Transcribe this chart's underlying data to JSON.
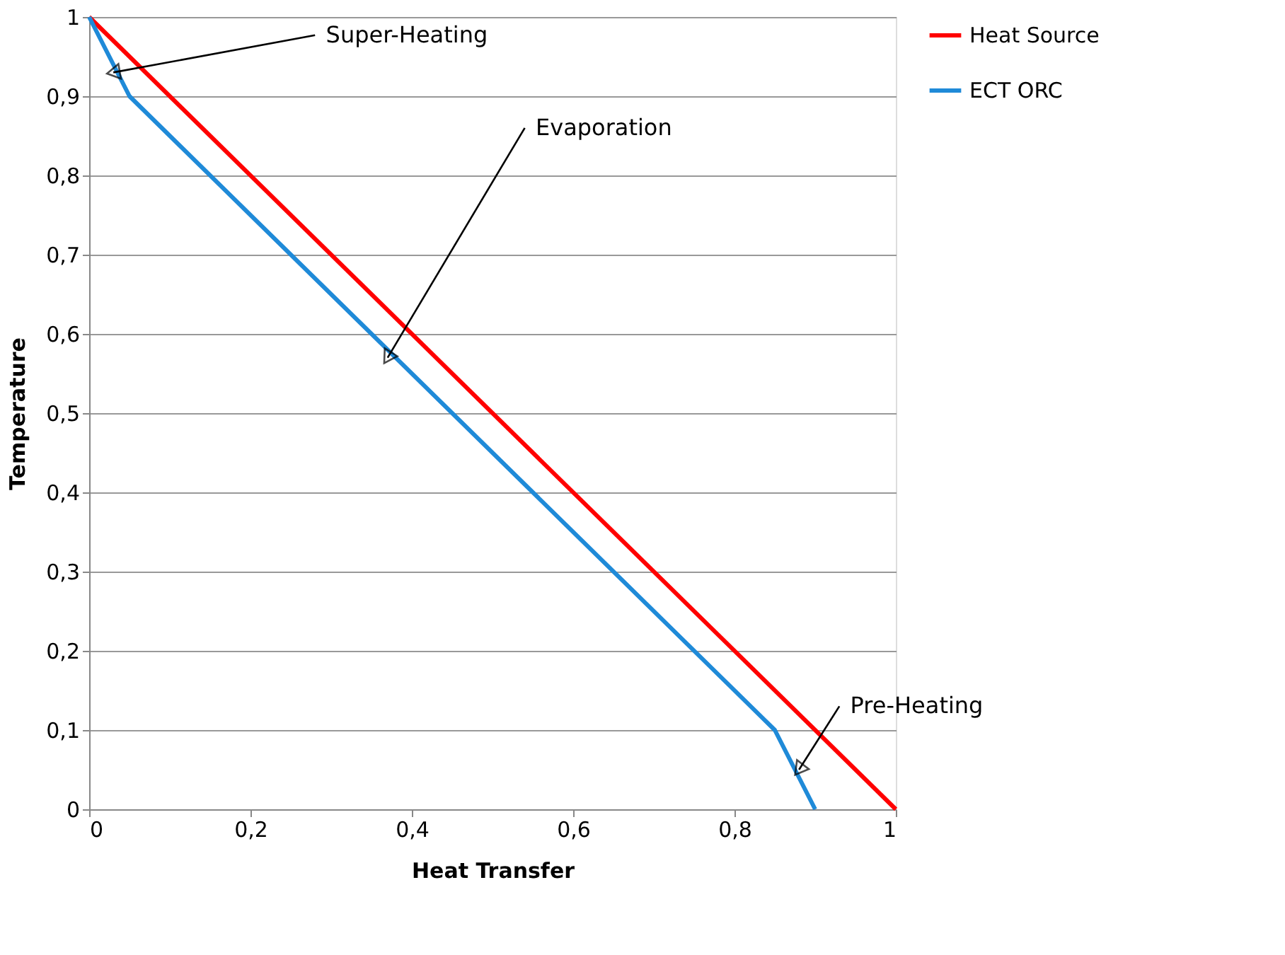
{
  "chart_data": {
    "type": "line",
    "xlabel": "Heat Transfer",
    "ylabel": "Temperature",
    "xlim": [
      0,
      1
    ],
    "ylim": [
      0,
      1
    ],
    "xticks": [
      0,
      {
        "value": 0.2,
        "label": "0,2"
      },
      {
        "value": 0.4,
        "label": "0,4"
      },
      {
        "value": 0.6,
        "label": "0,6"
      },
      {
        "value": 0.8,
        "label": "0,8"
      },
      1
    ],
    "yticks": [
      0,
      {
        "value": 0.1,
        "label": "0,1"
      },
      {
        "value": 0.2,
        "label": "0,2"
      },
      {
        "value": 0.3,
        "label": "0,3"
      },
      {
        "value": 0.4,
        "label": "0,4"
      },
      {
        "value": 0.5,
        "label": "0,5"
      },
      {
        "value": 0.6,
        "label": "0,6"
      },
      {
        "value": 0.7,
        "label": "0,7"
      },
      {
        "value": 0.8,
        "label": "0,8"
      },
      {
        "value": 0.9,
        "label": "0,9"
      },
      1
    ],
    "grid": "y",
    "legend": "right",
    "marker": "none",
    "line_style": "solid",
    "series": [
      {
        "name": "Heat Source",
        "color": "#ff0000",
        "x": [
          0,
          1
        ],
        "values": [
          1,
          0
        ]
      },
      {
        "name": "ECT ORC",
        "color": "#1f8ad8",
        "x": [
          0,
          0.05,
          0.85,
          0.9
        ],
        "values": [
          1,
          0.9,
          0.1,
          0
        ]
      }
    ],
    "annotations": [
      {
        "text": "Super-Heating",
        "x": 0.03,
        "y": 0.93
      },
      {
        "text": "Evaporation",
        "x": 0.37,
        "y": 0.57
      },
      {
        "text": "Pre-Heating",
        "x": 0.88,
        "y": 0.05
      }
    ]
  }
}
